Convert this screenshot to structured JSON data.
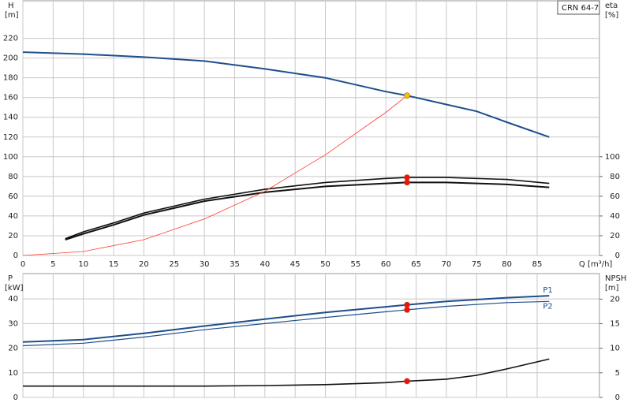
{
  "chart_data": [
    {
      "type": "line",
      "title": "CRN 64-7",
      "ylabel": "H",
      "yunit": "[m]",
      "y2label": "eta",
      "y2unit": "[%]",
      "xlabel": "Q [m³/h]",
      "xlim": [
        0,
        95.3
      ],
      "xticks": [
        0,
        5,
        10,
        15,
        20,
        25,
        30,
        35,
        40,
        45,
        50,
        55,
        60,
        65,
        70,
        75,
        80,
        85
      ],
      "ylim": [
        0,
        258
      ],
      "yticks": [
        0,
        20,
        40,
        60,
        80,
        100,
        120,
        140,
        160,
        180,
        200,
        220
      ],
      "y2lim": [
        0,
        258
      ],
      "y2ticks": [
        0,
        20,
        40,
        60,
        80,
        100
      ],
      "grid": true,
      "xtick_labels": true,
      "series": [
        {
          "color": "#1f4e8c",
          "width": 2,
          "x": [
            0,
            10,
            20,
            30,
            40,
            50,
            60,
            63.5,
            70,
            75,
            80,
            87
          ],
          "values": [
            206,
            204,
            201,
            197,
            189,
            180,
            166,
            162,
            153,
            146,
            135,
            120
          ]
        },
        {
          "color": "#111111",
          "width": 1.6,
          "axis": "y2",
          "x": [
            7,
            10,
            15,
            20,
            25,
            30,
            40,
            50,
            60,
            63.5,
            70,
            80,
            87
          ],
          "values": [
            17,
            24,
            33,
            43,
            50,
            57,
            67,
            74,
            78,
            79,
            79,
            77,
            73
          ]
        },
        {
          "color": "#111111",
          "width": 2,
          "axis": "y2",
          "x": [
            7,
            10,
            15,
            20,
            25,
            30,
            40,
            50,
            60,
            63.5,
            70,
            80,
            87
          ],
          "values": [
            16,
            22,
            31,
            41,
            48,
            55,
            64,
            70,
            73,
            74,
            74,
            72,
            69
          ]
        },
        {
          "color": "#ff3b30",
          "width": 0.8,
          "x": [
            0,
            10,
            20,
            30,
            40,
            50,
            60,
            63.5
          ],
          "values": [
            0,
            4,
            16,
            37,
            65,
            102,
            145,
            162
          ]
        }
      ],
      "points": [
        {
          "x": 63.5,
          "y": 162,
          "color": "#f5c400"
        },
        {
          "x": 63.5,
          "y": 79,
          "axis": "y2",
          "color": "#ee1111"
        },
        {
          "x": 63.5,
          "y": 74,
          "axis": "y2",
          "color": "#ee1111"
        }
      ]
    },
    {
      "type": "line",
      "ylabel": "P",
      "yunit": "[kW]",
      "y2label": "NPSH",
      "y2unit": "[m]",
      "xlim": [
        0,
        95.3
      ],
      "xticks": [
        0,
        5,
        10,
        15,
        20,
        25,
        30,
        35,
        40,
        45,
        50,
        55,
        60,
        65,
        70,
        75,
        80,
        85
      ],
      "ylim": [
        0,
        50.3
      ],
      "yticks": [
        0,
        10,
        20,
        30,
        40
      ],
      "y2lim": [
        0,
        25.2
      ],
      "y2ticks": [
        0,
        5,
        10,
        15,
        20
      ],
      "grid": true,
      "xtick_labels": false,
      "series": [
        {
          "name": "P1",
          "color": "#1f4e8c",
          "width": 2,
          "x": [
            0,
            10,
            20,
            30,
            40,
            50,
            60,
            63.5,
            70,
            80,
            87
          ],
          "values": [
            22.5,
            23.5,
            26,
            29,
            31.8,
            34.5,
            36.8,
            37.6,
            39,
            40.5,
            41.3
          ]
        },
        {
          "name": "P2",
          "color": "#1f4e8c",
          "width": 1.2,
          "x": [
            0,
            10,
            20,
            30,
            40,
            50,
            60,
            63.5,
            70,
            80,
            87
          ],
          "values": [
            21,
            22,
            24.5,
            27.5,
            30,
            32.5,
            34.8,
            35.6,
            37,
            38.5,
            39
          ]
        },
        {
          "color": "#111111",
          "width": 1.6,
          "axis": "y2",
          "x": [
            0,
            30,
            40,
            50,
            60,
            63.5,
            70,
            75,
            80,
            87
          ],
          "values": [
            2.3,
            2.3,
            2.4,
            2.6,
            3.0,
            3.3,
            3.7,
            4.5,
            5.8,
            7.8
          ]
        }
      ],
      "points": [
        {
          "x": 63.5,
          "y": 37.6,
          "color": "#ee1111"
        },
        {
          "x": 63.5,
          "y": 35.6,
          "color": "#ee1111"
        },
        {
          "x": 63.5,
          "y": 3.3,
          "axis": "y2",
          "color": "#ee1111"
        }
      ]
    }
  ]
}
